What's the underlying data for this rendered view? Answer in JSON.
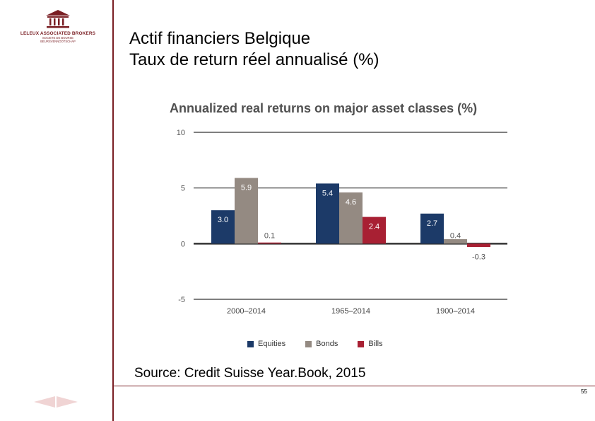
{
  "logo": {
    "name": "LELEUX ASSOCIATED BROKERS",
    "sub1": "SOCIETE DE BOURSE",
    "sub2": "BEURSVENNOOTSCHAP"
  },
  "title": {
    "line1": "Actif financiers Belgique",
    "line2": "Taux de return réel annualisé (%)"
  },
  "chart_data": {
    "type": "bar",
    "title": "Annualized real returns on major asset classes (%)",
    "categories": [
      "2000–2014",
      "1965–2014",
      "1900–2014"
    ],
    "series": [
      {
        "name": "Equities",
        "values": [
          3.0,
          5.4,
          2.7
        ],
        "labels": [
          "3.0",
          "5.4",
          "2.7"
        ],
        "color": "#1c3a68"
      },
      {
        "name": "Bonds",
        "values": [
          5.9,
          4.6,
          0.4
        ],
        "labels": [
          "5.9",
          "4.6",
          "0.4"
        ],
        "color": "#948a82"
      },
      {
        "name": "Bills",
        "values": [
          0.1,
          2.4,
          -0.3
        ],
        "labels": [
          "0.1",
          "2.4",
          "-0.3"
        ],
        "color": "#a82033"
      }
    ],
    "yticks": [
      "10",
      "5",
      "0",
      "-5"
    ],
    "ylim": [
      -5,
      10
    ],
    "grid": true,
    "legend": "bottom"
  },
  "source": "Source: Credit Suisse Year.Book, 2015",
  "page_number": "55",
  "colors": {
    "accent": "#7a1f24"
  }
}
